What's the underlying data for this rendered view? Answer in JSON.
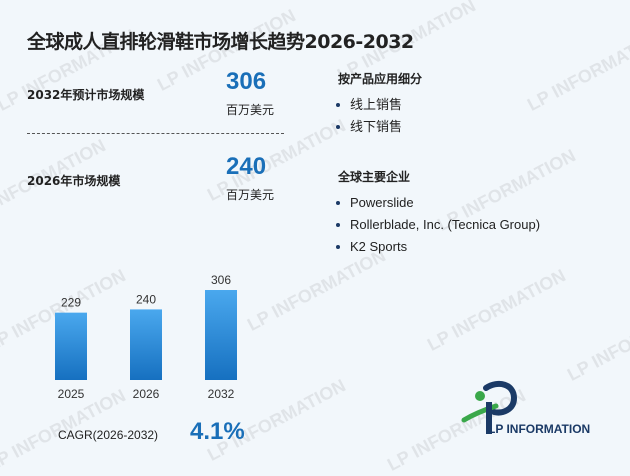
{
  "title": "全球成人直排轮滑鞋市场增长趋势2026-2032",
  "stat_2032": {
    "label": "2032年预计市场规模",
    "value": "306",
    "unit": "百万美元"
  },
  "stat_2026": {
    "label": "2026年市场规模",
    "value": "240",
    "unit": "百万美元"
  },
  "segments": {
    "title": "按产品应用细分",
    "items": [
      "线上销售",
      "线下销售"
    ]
  },
  "companies": {
    "title": "全球主要企业",
    "items": [
      "Powerslide",
      "Rollerblade, Inc. (Tecnica Group)",
      "K2 Sports"
    ]
  },
  "chart_data": {
    "type": "bar",
    "categories": [
      "2025",
      "2026",
      "2032"
    ],
    "values": [
      229,
      240,
      306
    ],
    "data_labels": [
      "229",
      "240",
      "306"
    ]
  },
  "cagr": {
    "label": "CAGR(2026-2032)",
    "value": "4.1%"
  },
  "logo": {
    "text": "LP INFORMATION"
  },
  "watermark": "LP INFORMATION",
  "colors": {
    "accent": "#1a6fb8",
    "bar_top": "#4aa8ee",
    "bar_bottom": "#1670c0",
    "logo_navy": "#1b3a66",
    "logo_green": "#3aa84a"
  }
}
